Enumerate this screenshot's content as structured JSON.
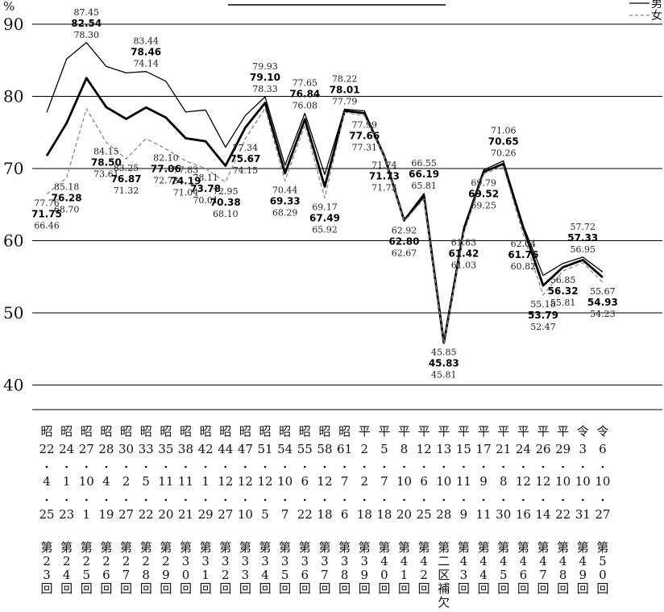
{
  "chart_data": {
    "type": "line",
    "ylabel": "%",
    "ylim": [
      35,
      90
    ],
    "yticks": [
      40,
      50,
      60,
      70,
      80,
      90
    ],
    "grid": true,
    "legend": {
      "position": "top-right",
      "entries": [
        "男",
        "女"
      ]
    },
    "categories": [
      {
        "era": "昭",
        "year": "22",
        "month": "4",
        "day": "25",
        "session": "第23回"
      },
      {
        "era": "昭",
        "year": "24",
        "month": "1",
        "day": "23",
        "session": "第24回"
      },
      {
        "era": "昭",
        "year": "27",
        "month": "10",
        "day": "1",
        "session": "第25回"
      },
      {
        "era": "昭",
        "year": "28",
        "month": "4",
        "day": "19",
        "session": "第26回"
      },
      {
        "era": "昭",
        "year": "30",
        "month": "2",
        "day": "27",
        "session": "第27回"
      },
      {
        "era": "昭",
        "year": "33",
        "month": "5",
        "day": "22",
        "session": "第28回"
      },
      {
        "era": "昭",
        "year": "35",
        "month": "11",
        "day": "20",
        "session": "第29回"
      },
      {
        "era": "昭",
        "year": "38",
        "month": "11",
        "day": "21",
        "session": "第30回"
      },
      {
        "era": "昭",
        "year": "42",
        "month": "1",
        "day": "29",
        "session": "第31回"
      },
      {
        "era": "昭",
        "year": "44",
        "month": "12",
        "day": "27",
        "session": "第32回"
      },
      {
        "era": "昭",
        "year": "47",
        "month": "12",
        "day": "10",
        "session": "第33回"
      },
      {
        "era": "昭",
        "year": "51",
        "month": "12",
        "day": "5",
        "session": "第34回"
      },
      {
        "era": "昭",
        "year": "54",
        "month": "10",
        "day": "7",
        "session": "第35回"
      },
      {
        "era": "昭",
        "year": "55",
        "month": "6",
        "day": "22",
        "session": "第36回"
      },
      {
        "era": "昭",
        "year": "58",
        "month": "12",
        "day": "18",
        "session": "第37回"
      },
      {
        "era": "昭",
        "year": "61",
        "month": "7",
        "day": "6",
        "session": "第38回"
      },
      {
        "era": "平",
        "year": "2",
        "month": "2",
        "day": "18",
        "session": "第39回"
      },
      {
        "era": "平",
        "year": "5",
        "month": "7",
        "day": "18",
        "session": "第40回"
      },
      {
        "era": "平",
        "year": "8",
        "month": "10",
        "day": "20",
        "session": "第41回"
      },
      {
        "era": "平",
        "year": "12",
        "month": "6",
        "day": "25",
        "session": "第42回"
      },
      {
        "era": "平",
        "year": "13",
        "month": "10",
        "day": "28",
        "session": "第二区補欠"
      },
      {
        "era": "平",
        "year": "15",
        "month": "11",
        "day": "9",
        "session": "第43回"
      },
      {
        "era": "平",
        "year": "17",
        "month": "9",
        "day": "11",
        "session": "第44回"
      },
      {
        "era": "平",
        "year": "21",
        "month": "8",
        "day": "30",
        "session": "第45回"
      },
      {
        "era": "平",
        "year": "24",
        "month": "12",
        "day": "16",
        "session": "第46回"
      },
      {
        "era": "平",
        "year": "26",
        "month": "12",
        "day": "14",
        "session": "第47回"
      },
      {
        "era": "平",
        "year": "29",
        "month": "10",
        "day": "22",
        "session": "第48回"
      },
      {
        "era": "令",
        "year": "3",
        "month": "10",
        "day": "31",
        "session": "第49回"
      },
      {
        "era": "令",
        "year": "6",
        "month": "10",
        "day": "27",
        "session": "第50回"
      }
    ],
    "series": [
      {
        "name": "男",
        "style": "thin",
        "color": "#000000",
        "values": [
          77.76,
          85.18,
          87.45,
          84.15,
          83.25,
          83.44,
          82.1,
          77.83,
          78.11,
          72.95,
          77.34,
          79.93,
          70.44,
          77.65,
          69.17,
          78.22,
          77.99,
          71.74,
          62.92,
          66.55,
          45.85,
          61.83,
          69.79,
          71.06,
          62.04,
          55.18,
          56.85,
          57.72,
          55.67
        ]
      },
      {
        "style": "bold",
        "color": "#000000",
        "values": [
          71.75,
          76.28,
          82.54,
          78.5,
          76.87,
          78.46,
          77.06,
          74.19,
          73.78,
          70.38,
          75.67,
          79.1,
          69.33,
          76.84,
          67.49,
          78.01,
          77.66,
          71.73,
          62.8,
          66.19,
          45.83,
          61.42,
          69.52,
          70.65,
          61.76,
          53.79,
          56.32,
          57.33,
          54.93
        ]
      },
      {
        "name": "女",
        "style": "dashed",
        "color": "#888888",
        "values": [
          66.46,
          68.7,
          78.3,
          73.61,
          71.32,
          74.14,
          72.73,
          71.04,
          70.01,
          68.1,
          74.15,
          78.33,
          68.29,
          76.08,
          65.92,
          77.79,
          77.31,
          71.73,
          62.67,
          65.81,
          45.81,
          61.03,
          69.25,
          70.26,
          60.82,
          52.47,
          55.81,
          56.95,
          54.23
        ]
      }
    ]
  }
}
